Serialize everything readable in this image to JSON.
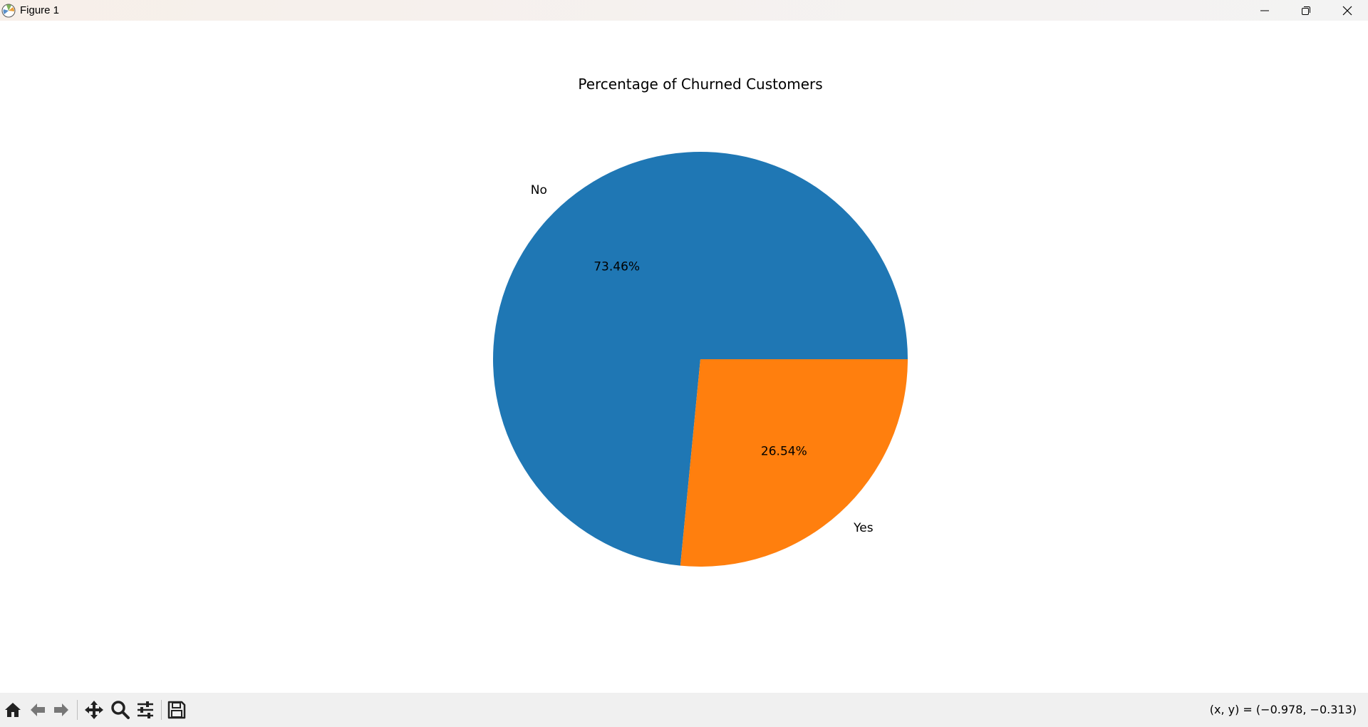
{
  "window": {
    "title": "Figure 1"
  },
  "toolbar": {
    "buttons": [
      "home-icon",
      "back-arrow-icon",
      "forward-arrow-icon",
      "pan-icon",
      "zoom-icon",
      "configure-subplots-icon",
      "save-icon"
    ],
    "coordinates": "(x, y) = (−0.978, −0.313)"
  },
  "chart_data": {
    "type": "pie",
    "title": "Percentage of Churned Customers",
    "labels": [
      "No",
      "Yes"
    ],
    "values": [
      73.46,
      26.54
    ],
    "autopct_labels": [
      "73.46%",
      "26.54%"
    ],
    "colors": [
      "#1f77b4",
      "#ff7f0e"
    ],
    "startangle": 0,
    "counterclockwise": true
  }
}
